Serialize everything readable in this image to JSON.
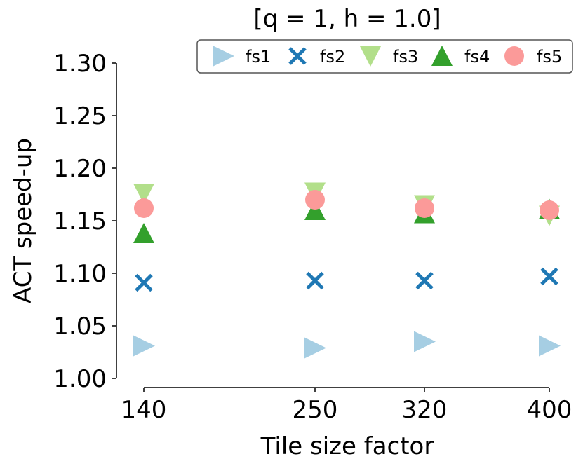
{
  "chart_data": {
    "type": "scatter",
    "title": "[q = 1, h = 1.0]",
    "xlabel": "Tile size factor",
    "ylabel": "ACT speed-up",
    "x": [
      140,
      250,
      320,
      400
    ],
    "x_tick_labels": [
      "140",
      "250",
      "320",
      "400"
    ],
    "ylim": [
      1.0,
      1.3
    ],
    "y_ticks": [
      1.0,
      1.05,
      1.1,
      1.15,
      1.2,
      1.25,
      1.3
    ],
    "y_tick_labels": [
      "1.00",
      "1.05",
      "1.10",
      "1.15",
      "1.20",
      "1.25",
      "1.30"
    ],
    "grid": false,
    "legend_position": "top",
    "series": [
      {
        "name": "fs1",
        "marker": "triangle-right",
        "color": "#a6cee3",
        "values": [
          1.031,
          1.029,
          1.035,
          1.031
        ]
      },
      {
        "name": "fs2",
        "marker": "x",
        "color": "#1f78b4",
        "values": [
          1.091,
          1.093,
          1.093,
          1.097
        ]
      },
      {
        "name": "fs3",
        "marker": "triangle-down",
        "color": "#b2df8a",
        "values": [
          1.176,
          1.177,
          1.165,
          1.155
        ]
      },
      {
        "name": "fs4",
        "marker": "triangle-up",
        "color": "#33a02c",
        "values": [
          1.138,
          1.16,
          1.157,
          1.161
        ]
      },
      {
        "name": "fs5",
        "marker": "circle",
        "color": "#fb9a99",
        "values": [
          1.162,
          1.17,
          1.162,
          1.16
        ]
      }
    ]
  }
}
